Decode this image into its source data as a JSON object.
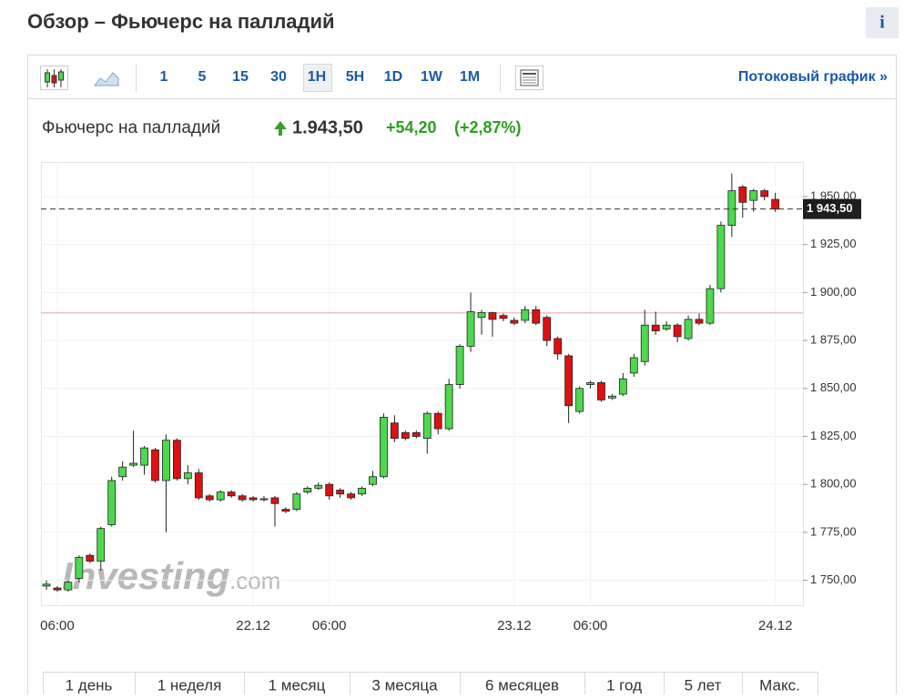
{
  "header": {
    "title": "Обзор – Фьючерс на палладий",
    "info": "i"
  },
  "toolbar": {
    "intervals": [
      "1",
      "5",
      "15",
      "30",
      "1H",
      "5H",
      "1D",
      "1W",
      "1M"
    ],
    "active": "1H",
    "streaming": "Потоковый график »"
  },
  "quote": {
    "name": "Фьючерс на палладий",
    "price": "1.943,50",
    "change": "+54,20",
    "change_percent": "(+2,87%)"
  },
  "periods": [
    "1 день",
    "1 неделя",
    "1 месяц",
    "3 месяца",
    "6 месяцев",
    "1 год",
    "5 лет",
    "Макс."
  ],
  "chart_data": {
    "type": "candlestick",
    "watermark": [
      "Investing",
      ".com"
    ],
    "categories": [
      null,
      "06:00",
      null,
      null,
      null,
      null,
      null,
      null,
      null,
      null,
      null,
      null,
      null,
      null,
      null,
      null,
      null,
      null,
      null,
      "22.12",
      null,
      null,
      null,
      null,
      null,
      null,
      "06:00",
      null,
      null,
      null,
      null,
      null,
      null,
      null,
      null,
      null,
      null,
      null,
      null,
      null,
      null,
      null,
      null,
      "23.12",
      null,
      null,
      null,
      null,
      null,
      null,
      "06:00",
      null,
      null,
      null,
      null,
      null,
      null,
      null,
      null,
      null,
      null,
      null,
      null,
      null,
      null,
      null,
      null,
      "24.12"
    ],
    "open": [
      1747,
      1746,
      1745,
      1751,
      1763,
      1760,
      1779,
      1804,
      1810,
      1810,
      1818,
      1802,
      1823,
      1803,
      1806,
      1794,
      1792,
      1796,
      1794,
      1793,
      1792,
      1793,
      1787,
      1787,
      1796,
      1798,
      1800,
      1797,
      1795,
      1795,
      1800,
      1804,
      1832,
      1827,
      1827,
      1824,
      1837,
      1829,
      1852,
      1872,
      1887,
      1889.5,
      1888,
      1885.5,
      1885.5,
      1891,
      1887,
      1876,
      1867,
      1838,
      1852,
      1853,
      1845,
      1847,
      1858,
      1864,
      1883,
      1881,
      1883,
      1876,
      1886,
      1884,
      1902,
      1935,
      1955,
      1948,
      1953,
      1948.5
    ],
    "high": [
      1750,
      1747,
      1750,
      1763,
      1764,
      1778,
      1804,
      1812,
      1828,
      1820,
      1819,
      1826,
      1824,
      1810,
      1808,
      1795,
      1797,
      1797,
      1795,
      1794,
      1794,
      1794,
      1788,
      1796,
      1799,
      1801,
      1801,
      1798,
      1796,
      1799,
      1807,
      1837,
      1836,
      1828,
      1828,
      1838,
      1838,
      1855,
      1873,
      1900,
      1891,
      1890,
      1889,
      1887,
      1893,
      1893,
      1888,
      1877,
      1868,
      1851,
      1854,
      1854,
      1847,
      1858,
      1868,
      1891,
      1890,
      1885,
      1884,
      1888,
      1889,
      1904,
      1937,
      1962,
      1956,
      1954,
      1954,
      1952
    ],
    "low": [
      1745,
      1744,
      1744,
      1749,
      1759,
      1755,
      1778,
      1802,
      1809,
      1805,
      1801,
      1775,
      1802,
      1800,
      1792,
      1791,
      1791,
      1793,
      1791,
      1791,
      1791,
      1778,
      1785,
      1786,
      1795,
      1797,
      1792,
      1793,
      1792,
      1794,
      1799,
      1803,
      1822,
      1823,
      1824,
      1816,
      1826,
      1828,
      1850,
      1869,
      1878,
      1877,
      1885,
      1883,
      1884,
      1883,
      1872,
      1865,
      1832,
      1837,
      1850,
      1843,
      1844,
      1846,
      1856,
      1862,
      1878,
      1880,
      1874,
      1875,
      1883,
      1883,
      1900,
      1929,
      1939,
      1942,
      1948,
      1942
    ],
    "close": [
      1748,
      1745,
      1749,
      1762,
      1760,
      1777,
      1802,
      1809,
      1811,
      1819,
      1802,
      1823,
      1803,
      1806,
      1793,
      1792,
      1796,
      1794,
      1792,
      1792,
      1792.5,
      1790,
      1786,
      1795,
      1798,
      1799.5,
      1794,
      1795,
      1793,
      1798,
      1804,
      1835,
      1824,
      1824,
      1825,
      1837,
      1829,
      1852,
      1872,
      1890,
      1889.5,
      1886,
      1886.5,
      1884,
      1891,
      1884,
      1875,
      1868,
      1841,
      1850,
      1853,
      1844,
      1846,
      1855,
      1866,
      1883,
      1880,
      1883,
      1877,
      1886,
      1884,
      1902,
      1935,
      1953,
      1947,
      1953,
      1950,
      1943.5
    ],
    "up_color": "#4cd94c",
    "down_color": "#e01010",
    "ylim": [
      1737,
      1968
    ],
    "yticks": [
      {
        "value": 1750,
        "label": "1 750,00"
      },
      {
        "value": 1775,
        "label": "1 775,00"
      },
      {
        "value": 1800,
        "label": "1 800,00"
      },
      {
        "value": 1825,
        "label": "1 825,00"
      },
      {
        "value": 1850,
        "label": "1 850,00"
      },
      {
        "value": 1875,
        "label": "1 875,00"
      },
      {
        "value": 1900,
        "label": "1 900,00"
      },
      {
        "value": 1925,
        "label": "1 925,00"
      },
      {
        "value": 1950,
        "label": "1 950,00"
      }
    ],
    "last_price": {
      "value": 1943.5,
      "label": "1 943,50"
    },
    "previous_close": 1889.3,
    "grid": true
  }
}
